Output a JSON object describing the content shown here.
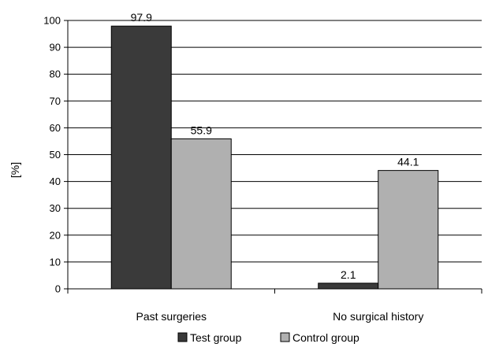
{
  "chart_data": {
    "type": "bar",
    "title": "",
    "xlabel": "",
    "ylabel": "[%]",
    "ylim": [
      0,
      100
    ],
    "yticks": [
      0,
      10,
      20,
      30,
      40,
      50,
      60,
      70,
      80,
      90,
      100
    ],
    "grid": "horizontal",
    "legend_position": "bottom",
    "categories": [
      "Past surgeries",
      "No surgical history"
    ],
    "series": [
      {
        "name": "Test group",
        "values": [
          97.9,
          2.1
        ],
        "color": "#3a3a3a"
      },
      {
        "name": "Control group",
        "values": [
          55.9,
          44.1
        ],
        "color": "#b0b0b0"
      }
    ]
  }
}
